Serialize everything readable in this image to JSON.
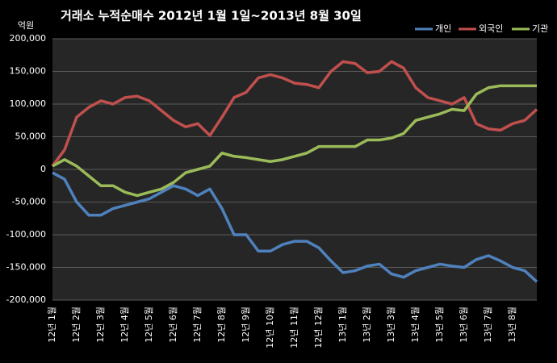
{
  "chart_data": {
    "type": "line",
    "title": "거래소  누적순매수 2012년 1월 1일~2013년 8월 30일",
    "y_unit": "억원",
    "categories": [
      "12년 1월",
      null,
      "12년 2월",
      null,
      "12년 3월",
      null,
      "12년 4월",
      null,
      "12년 5월",
      null,
      "12년 6월",
      null,
      "12년 7월",
      null,
      "12년 8월",
      null,
      "12년 9월",
      null,
      "12년 10월",
      null,
      "12년 11월",
      null,
      "12년 12월",
      null,
      "13년 1월",
      null,
      "13년 2월",
      null,
      "13년 3월",
      null,
      "13년 4월",
      null,
      "13년 5월",
      null,
      "13년 6월",
      null,
      "13년 7월",
      null,
      "13년 8월",
      null,
      null
    ],
    "series": [
      {
        "name": "개인",
        "color": "#4f81bd",
        "values": [
          -5000,
          -15000,
          -50000,
          -70000,
          -70000,
          -60000,
          -55000,
          -50000,
          -45000,
          -35000,
          -25000,
          -30000,
          -40000,
          -30000,
          -60000,
          -100000,
          -100000,
          -125000,
          -125000,
          -115000,
          -110000,
          -110000,
          -120000,
          -140000,
          -158000,
          -155000,
          -148000,
          -145000,
          -160000,
          -165000,
          -155000,
          -150000,
          -145000,
          -148000,
          -150000,
          -138000,
          -132000,
          -140000,
          -150000,
          -155000,
          -172000
        ]
      },
      {
        "name": "외국인",
        "color": "#c0504d",
        "values": [
          5000,
          30000,
          80000,
          95000,
          105000,
          100000,
          110000,
          112000,
          105000,
          90000,
          75000,
          65000,
          70000,
          52000,
          80000,
          110000,
          118000,
          140000,
          145000,
          140000,
          132000,
          130000,
          125000,
          150000,
          165000,
          162000,
          148000,
          150000,
          165000,
          155000,
          125000,
          110000,
          105000,
          100000,
          110000,
          70000,
          62000,
          60000,
          70000,
          75000,
          92000
        ]
      },
      {
        "name": "기관",
        "color": "#9bbb59",
        "values": [
          5000,
          15000,
          5000,
          -10000,
          -25000,
          -25000,
          -35000,
          -40000,
          -35000,
          -30000,
          -20000,
          -5000,
          0,
          5000,
          25000,
          20000,
          18000,
          15000,
          12000,
          15000,
          20000,
          25000,
          35000,
          35000,
          35000,
          35000,
          45000,
          45000,
          48000,
          55000,
          75000,
          80000,
          85000,
          92000,
          90000,
          115000,
          125000,
          128000,
          128000,
          128000,
          128000
        ]
      }
    ],
    "ylim": [
      -200000,
      200000
    ],
    "yticks": [
      {
        "value": -200000,
        "label": "-200,000"
      },
      {
        "value": -150000,
        "label": "-150,000"
      },
      {
        "value": -100000,
        "label": "-100,000"
      },
      {
        "value": -50000,
        "label": "-50,000"
      },
      0,
      {
        "value": 50000,
        "label": "50,000"
      },
      {
        "value": 100000,
        "label": "100,000"
      },
      {
        "value": 150000,
        "label": "150,000"
      },
      {
        "value": 200000,
        "label": "200,000"
      }
    ],
    "grid": true,
    "legend": "top-right"
  }
}
